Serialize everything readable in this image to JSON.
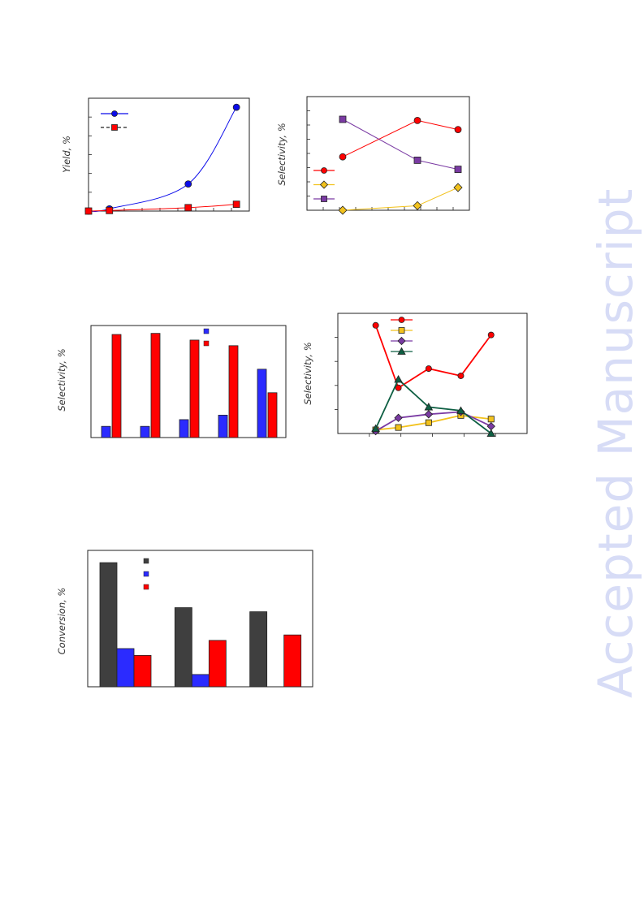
{
  "watermark": "Accepted Manuscript",
  "colors": {
    "blue": "#0b0bea",
    "red": "#ff0000",
    "purple": "#7a3aa3",
    "orange": "#f2c21d",
    "green": "#0e5f43",
    "dark": "#3f3f3f",
    "barblue": "#2b2bff"
  },
  "chart_data": [
    {
      "id": "chart-1",
      "type": "line",
      "ylabel": "Yield, %",
      "xlim": [
        0,
        100
      ],
      "ylim": [
        0,
        100
      ],
      "series": [
        {
          "name": "",
          "color": "blue",
          "marker": "circle",
          "line": "solid",
          "x": [
            0,
            13,
            62,
            92
          ],
          "y": [
            0,
            2,
            24,
            92
          ]
        },
        {
          "name": "",
          "color": "red",
          "marker": "square",
          "line": "dashed",
          "x": [
            0,
            13,
            62,
            92
          ],
          "y": [
            0,
            0.5,
            3,
            6
          ]
        }
      ],
      "legend": "top-left"
    },
    {
      "id": "chart-2",
      "type": "line",
      "ylabel": "Selectivity, %",
      "xlim": [
        0,
        100
      ],
      "ylim": [
        0,
        100
      ],
      "series": [
        {
          "name": "",
          "color": "red",
          "marker": "circle",
          "line": "solid",
          "x": [
            22,
            68,
            93
          ],
          "y": [
            47,
            79,
            71
          ]
        },
        {
          "name": "",
          "color": "orange",
          "marker": "diamond",
          "line": "solid",
          "x": [
            22,
            68,
            93
          ],
          "y": [
            0,
            4,
            20
          ]
        },
        {
          "name": "",
          "color": "purple",
          "marker": "square",
          "line": "solid",
          "x": [
            22,
            68,
            93
          ],
          "y": [
            80,
            44,
            36
          ]
        }
      ],
      "legend": "bottom-left"
    },
    {
      "id": "chart-3",
      "type": "bar",
      "ylabel": "Selectivity, %",
      "categories": [
        "",
        "",
        "",
        "",
        ""
      ],
      "ylim": [
        0,
        100
      ],
      "series": [
        {
          "name": "",
          "color": "barblue",
          "values": [
            10,
            10,
            16,
            20,
            61
          ]
        },
        {
          "name": "",
          "color": "red",
          "values": [
            92,
            93,
            87,
            82,
            40
          ]
        }
      ],
      "legend": "top-right"
    },
    {
      "id": "chart-4",
      "type": "line",
      "ylabel": "Selectivity, %",
      "xlim": [
        0,
        100
      ],
      "ylim": [
        0,
        100
      ],
      "series": [
        {
          "name": "",
          "color": "red",
          "marker": "circle",
          "line": "solid",
          "x": [
            20,
            32,
            48,
            65,
            81
          ],
          "y": [
            90,
            38,
            54,
            48,
            82
          ]
        },
        {
          "name": "",
          "color": "orange",
          "marker": "square",
          "line": "solid",
          "x": [
            20,
            32,
            48,
            65,
            81
          ],
          "y": [
            3,
            5,
            9,
            15,
            12
          ]
        },
        {
          "name": "",
          "color": "purple",
          "marker": "diamond",
          "line": "solid",
          "x": [
            20,
            32,
            48,
            65,
            81
          ],
          "y": [
            2,
            13,
            16,
            18,
            6
          ]
        },
        {
          "name": "",
          "color": "green",
          "marker": "triangle",
          "line": "solid",
          "x": [
            20,
            32,
            48,
            65,
            81
          ],
          "y": [
            4,
            45,
            22,
            19,
            0
          ]
        }
      ],
      "legend": "top-center"
    },
    {
      "id": "chart-5",
      "type": "bar",
      "ylabel": "Conversion, %",
      "categories": [
        "",
        "",
        ""
      ],
      "ylim": [
        0,
        100
      ],
      "series": [
        {
          "name": "",
          "color": "dark",
          "values": [
            91,
            58,
            55
          ]
        },
        {
          "name": "",
          "color": "barblue",
          "values": [
            28,
            9,
            0
          ]
        },
        {
          "name": "",
          "color": "red",
          "values": [
            23,
            34,
            38
          ]
        }
      ],
      "legend": "top-center"
    }
  ]
}
